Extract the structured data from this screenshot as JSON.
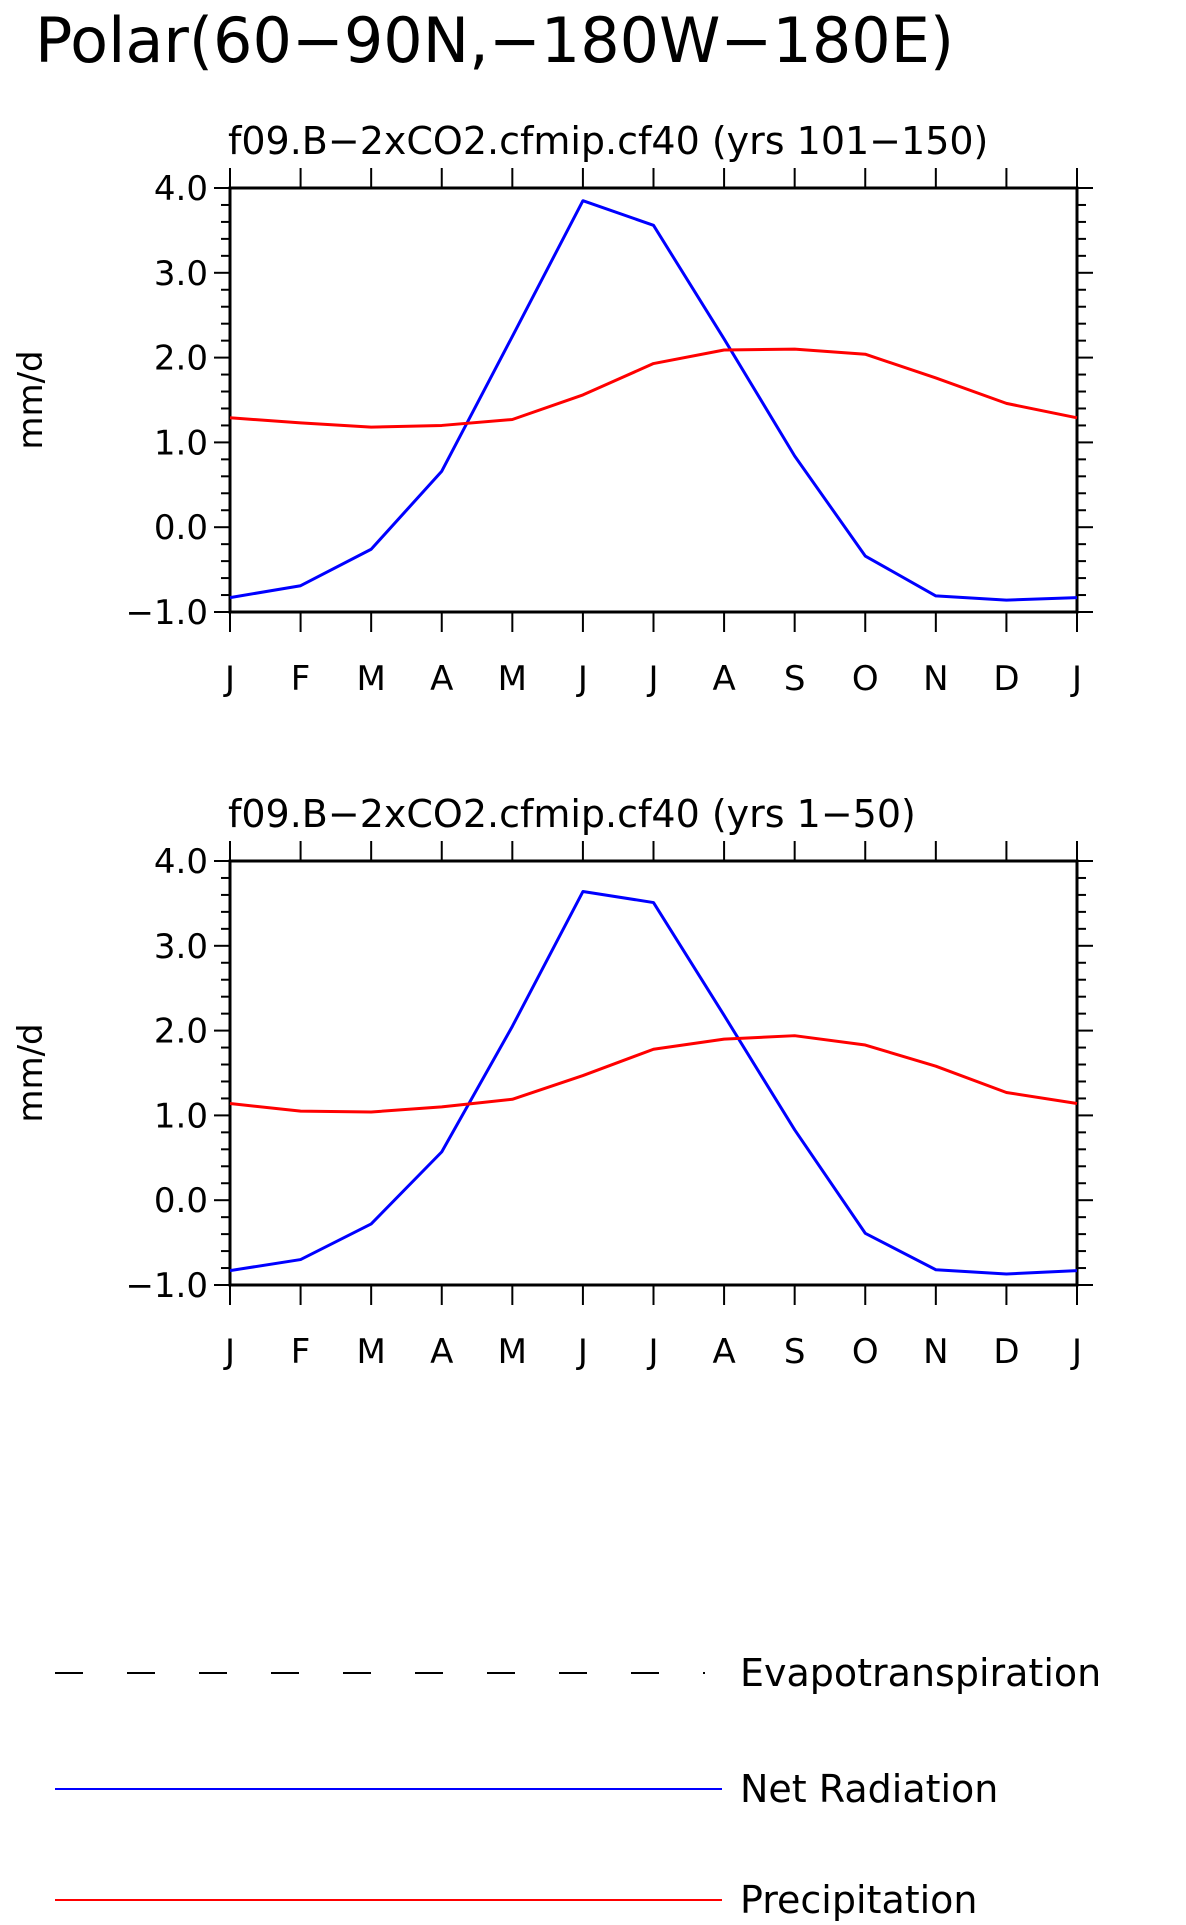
{
  "figure": {
    "title": "Polar(60−90N,−180W−180E)"
  },
  "legend": {
    "placement": "bottom",
    "entries": [
      {
        "label": "Evapotranspiration",
        "color": "#000000",
        "style": "dashed"
      },
      {
        "label": "Net Radiation",
        "color": "#0000ff",
        "style": "solid"
      },
      {
        "label": "Precipitation",
        "color": "#ff0000",
        "style": "solid"
      }
    ]
  },
  "chart_data": [
    {
      "type": "line",
      "title": "f09.B−2xCO2.cfmip.cf40 (yrs 101−150)",
      "xlabel": "",
      "ylabel": "mm/d",
      "categories": [
        "J",
        "F",
        "M",
        "A",
        "M",
        "J",
        "J",
        "A",
        "S",
        "O",
        "N",
        "D",
        "J"
      ],
      "ylim": [
        -1.0,
        4.0
      ],
      "yticks": [
        -1.0,
        0.0,
        1.0,
        2.0,
        3.0,
        4.0
      ],
      "ytick_labels": [
        "−1.0",
        "0.0",
        "1.0",
        "2.0",
        "3.0",
        "4.0"
      ],
      "grid": false,
      "series": [
        {
          "name": "Net Radiation",
          "color": "#0000ff",
          "values": [
            -0.83,
            -0.69,
            -0.26,
            0.66,
            2.25,
            3.85,
            3.56,
            2.22,
            0.84,
            -0.34,
            -0.81,
            -0.86,
            -0.83
          ]
        },
        {
          "name": "Precipitation",
          "color": "#ff0000",
          "values": [
            1.29,
            1.23,
            1.18,
            1.2,
            1.27,
            1.56,
            1.93,
            2.09,
            2.1,
            2.04,
            1.76,
            1.46,
            1.29
          ]
        }
      ]
    },
    {
      "type": "line",
      "title": "f09.B−2xCO2.cfmip.cf40 (yrs 1−50)",
      "xlabel": "",
      "ylabel": "mm/d",
      "categories": [
        "J",
        "F",
        "M",
        "A",
        "M",
        "J",
        "J",
        "A",
        "S",
        "O",
        "N",
        "D",
        "J"
      ],
      "ylim": [
        -1.0,
        4.0
      ],
      "yticks": [
        -1.0,
        0.0,
        1.0,
        2.0,
        3.0,
        4.0
      ],
      "ytick_labels": [
        "−1.0",
        "0.0",
        "1.0",
        "2.0",
        "3.0",
        "4.0"
      ],
      "grid": false,
      "series": [
        {
          "name": "Net Radiation",
          "color": "#0000ff",
          "values": [
            -0.83,
            -0.7,
            -0.28,
            0.57,
            2.05,
            3.64,
            3.51,
            2.18,
            0.83,
            -0.39,
            -0.82,
            -0.87,
            -0.83
          ]
        },
        {
          "name": "Precipitation",
          "color": "#ff0000",
          "values": [
            1.14,
            1.05,
            1.04,
            1.1,
            1.19,
            1.47,
            1.78,
            1.9,
            1.94,
            1.83,
            1.58,
            1.27,
            1.14
          ]
        }
      ]
    }
  ]
}
